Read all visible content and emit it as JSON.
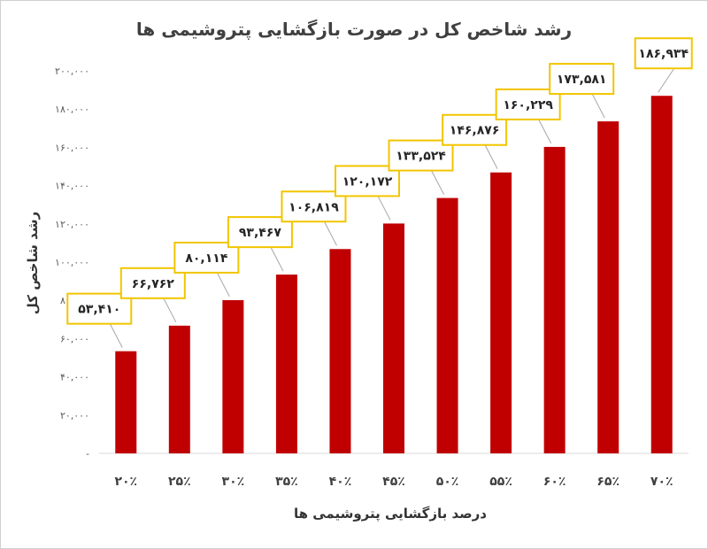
{
  "chart_data": {
    "type": "bar",
    "title": "رشد شاخص کل در صورت بازگشایی پتروشیمی ها",
    "xlabel": "درصد بازگشایی پتروشیمی ها",
    "ylabel": "رشد شاخص کل",
    "categories": [
      "۲۰٪",
      "۲۵٪",
      "۳۰٪",
      "۳۵٪",
      "۴۰٪",
      "۴۵٪",
      "۵۰٪",
      "۵۵٪",
      "۶۰٪",
      "۶۵٪",
      "۷۰٪"
    ],
    "values": [
      53410,
      66762,
      80114,
      93467,
      106819,
      120172,
      133524,
      146876,
      160229,
      173581,
      186934
    ],
    "data_labels": [
      "۵۳,۴۱۰",
      "۶۶,۷۶۲",
      "۸۰,۱۱۴",
      "۹۳,۴۶۷",
      "۱۰۶,۸۱۹",
      "۱۲۰,۱۷۲",
      "۱۳۳,۵۲۴",
      "۱۴۶,۸۷۶",
      "۱۶۰,۲۲۹",
      "۱۷۳,۵۸۱",
      "۱۸۶,۹۳۴"
    ],
    "ylim": [
      0,
      200000
    ],
    "yticks": [
      0,
      20000,
      40000,
      60000,
      80000,
      100000,
      120000,
      140000,
      160000,
      180000,
      200000
    ],
    "ytick_labels": [
      "-",
      "۲۰,۰۰۰",
      "۴۰,۰۰۰",
      "۶۰,۰۰۰",
      "۸۰,۰۰۰",
      "۱۰۰,۰۰۰",
      "۱۲۰,۰۰۰",
      "۱۴۰,۰۰۰",
      "۱۶۰,۰۰۰",
      "۱۸۰,۰۰۰",
      "۲۰۰,۰۰۰"
    ],
    "grid": false,
    "legend": "none",
    "colors": {
      "bar": "#C00000",
      "label_border": "#F2C500",
      "leader_line": "#A6A6A6",
      "axis_line": "#D9D9D9"
    }
  }
}
